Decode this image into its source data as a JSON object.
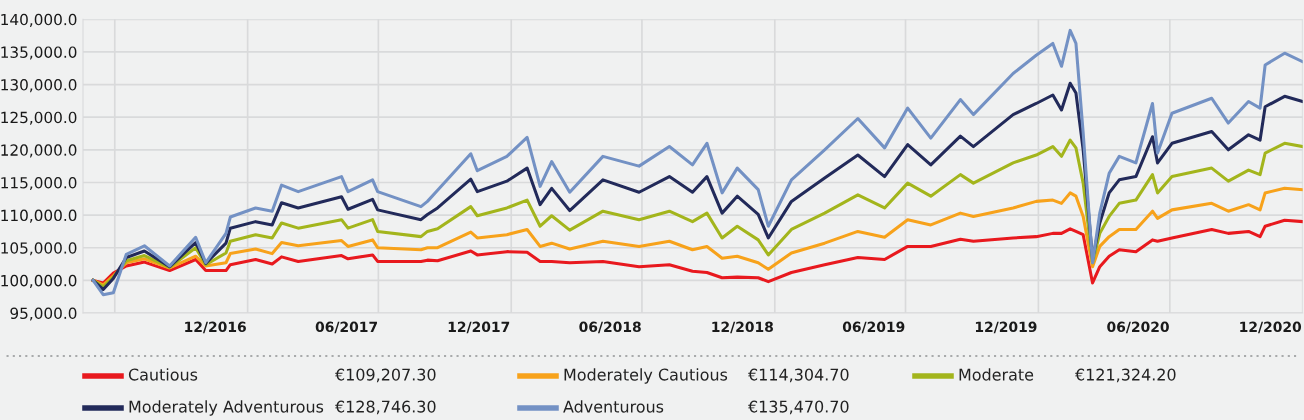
{
  "chart_data": {
    "type": "line",
    "x": [
      "2016-06-15",
      "2016-06-29",
      "2016-07-13",
      "2016-07-31",
      "2016-08-25",
      "2016-09-29",
      "2016-11-04",
      "2016-11-18",
      "2016-12-16",
      "2016-12-22",
      "2017-01-26",
      "2017-02-18",
      "2017-03-03",
      "2017-03-26",
      "2017-05-25",
      "2017-06-03",
      "2017-07-07",
      "2017-07-14",
      "2017-09-12",
      "2017-09-21",
      "2017-10-05",
      "2017-11-20",
      "2017-11-29",
      "2018-01-09",
      "2018-02-06",
      "2018-02-24",
      "2018-03-12",
      "2018-04-06",
      "2018-05-22",
      "2018-07-11",
      "2018-08-22",
      "2018-09-23",
      "2018-10-13",
      "2018-11-03",
      "2018-11-24",
      "2018-12-23",
      "2019-01-06",
      "2019-02-07",
      "2019-03-25",
      "2019-05-10",
      "2019-06-16",
      "2019-07-18",
      "2019-08-19",
      "2019-09-29",
      "2019-10-17",
      "2019-12-11",
      "2020-01-12",
      "2020-02-04",
      "2020-02-16",
      "2020-02-28",
      "2020-03-07",
      "2020-03-17",
      "2020-03-30",
      "2020-04-09",
      "2020-04-22",
      "2020-05-06",
      "2020-05-29",
      "2020-06-21",
      "2020-06-28",
      "2020-07-18",
      "2020-09-11",
      "2020-10-04",
      "2020-11-01",
      "2020-11-17",
      "2020-11-24",
      "2020-12-21",
      "2021-01-15"
    ],
    "series": [
      {
        "name": "Cautious",
        "color": "#e8191e",
        "values": [
          100000,
          99600,
          101100,
          102200,
          102800,
          101500,
          103200,
          101500,
          101500,
          102400,
          103200,
          102500,
          103600,
          102900,
          103800,
          103300,
          103900,
          102900,
          102900,
          103100,
          103000,
          104500,
          103900,
          104400,
          104300,
          102900,
          102900,
          102700,
          102900,
          102100,
          102400,
          101400,
          101200,
          100400,
          100500,
          100400,
          99800,
          101200,
          102400,
          103500,
          103200,
          105200,
          105200,
          106300,
          106000,
          106500,
          106700,
          107200,
          107200,
          107900,
          107500,
          107000,
          99600,
          102100,
          103700,
          104700,
          104400,
          106200,
          106000,
          106500,
          107800,
          107200,
          107500,
          106700,
          108300,
          109200,
          109000
        ]
      },
      {
        "name": "Moderately Cautious",
        "color": "#f7a21b",
        "values": [
          100000,
          99300,
          100700,
          102700,
          103300,
          101900,
          103700,
          102200,
          102700,
          104100,
          104800,
          104100,
          105800,
          105300,
          106100,
          105200,
          106200,
          105000,
          104700,
          105000,
          105000,
          107400,
          106500,
          107000,
          107800,
          105200,
          105700,
          104800,
          106000,
          105200,
          106000,
          104700,
          105200,
          103400,
          103700,
          102700,
          101700,
          104200,
          105700,
          107500,
          106600,
          109300,
          108500,
          110300,
          109800,
          111100,
          112100,
          112300,
          111800,
          113400,
          112900,
          109800,
          102100,
          105200,
          106700,
          107800,
          107800,
          110600,
          109500,
          110800,
          111800,
          110600,
          111600,
          110800,
          113400,
          114100,
          113900
        ]
      },
      {
        "name": "Moderate",
        "color": "#a3b51c",
        "values": [
          100000,
          99000,
          100500,
          103000,
          103800,
          102000,
          105000,
          102400,
          104200,
          106000,
          107000,
          106500,
          108800,
          108000,
          109300,
          108000,
          109300,
          107500,
          106700,
          107500,
          107900,
          111300,
          109900,
          111100,
          112300,
          108300,
          109900,
          107700,
          110600,
          109300,
          110600,
          109000,
          110300,
          106500,
          108300,
          106200,
          103900,
          107800,
          110300,
          113100,
          111100,
          114900,
          112900,
          116200,
          114900,
          118000,
          119200,
          120500,
          119000,
          121500,
          120300,
          114900,
          102700,
          107200,
          109800,
          111800,
          112300,
          116200,
          113400,
          115900,
          117200,
          115200,
          116900,
          116200,
          119500,
          121000,
          120500
        ]
      },
      {
        "name": "Moderately Adventurous",
        "color": "#222a5a",
        "values": [
          100000,
          98600,
          100300,
          103500,
          104500,
          102100,
          105800,
          102600,
          105700,
          108000,
          109000,
          108500,
          111900,
          111100,
          112800,
          110900,
          112400,
          110800,
          109300,
          110100,
          111100,
          115500,
          113600,
          115200,
          117200,
          111600,
          114100,
          110700,
          115400,
          113500,
          115900,
          113500,
          115900,
          110300,
          112900,
          110100,
          106500,
          112100,
          115700,
          119200,
          115900,
          120800,
          117700,
          122100,
          120500,
          125400,
          127100,
          128400,
          126100,
          130200,
          128700,
          120000,
          103200,
          108800,
          113400,
          115400,
          115900,
          122000,
          118000,
          121000,
          122800,
          120000,
          122300,
          121500,
          126600,
          128200,
          127400
        ]
      },
      {
        "name": "Adventurous",
        "color": "#7391c4",
        "values": [
          100000,
          97800,
          98100,
          104000,
          105300,
          102200,
          106600,
          102700,
          107200,
          109700,
          111100,
          110600,
          114600,
          113600,
          115900,
          113600,
          115400,
          113600,
          111300,
          112100,
          113800,
          119400,
          116800,
          119000,
          121900,
          114400,
          118200,
          113500,
          119000,
          117500,
          120500,
          117700,
          121000,
          113400,
          117200,
          113900,
          108300,
          115400,
          120000,
          124800,
          120300,
          126400,
          121800,
          127700,
          125400,
          131700,
          134500,
          136300,
          132800,
          138300,
          136300,
          122600,
          102700,
          110300,
          116400,
          119000,
          118000,
          127100,
          119500,
          125600,
          127900,
          124100,
          127400,
          126400,
          133000,
          134800,
          133500
        ]
      }
    ],
    "annotations": [
      "€109,207.30",
      "€114,304.70",
      "€121,324.20",
      "€128,746.30",
      "€135,470.70"
    ],
    "xlim": [
      "2016-06-01",
      "2021-01-15"
    ],
    "xticks": [
      {
        "value": "2016-07-15",
        "label": null
      },
      {
        "value": "2016-12-01",
        "label": "12/2016"
      },
      {
        "value": "2017-01-15",
        "label": null
      },
      {
        "value": "2017-06-01",
        "label": "06/2017"
      },
      {
        "value": "2017-07-15",
        "label": null
      },
      {
        "value": "2017-12-01",
        "label": "12/2017"
      },
      {
        "value": "2018-01-15",
        "label": null
      },
      {
        "value": "2018-06-01",
        "label": "06/2018"
      },
      {
        "value": "2018-07-15",
        "label": null
      },
      {
        "value": "2018-12-01",
        "label": "12/2018"
      },
      {
        "value": "2019-01-15",
        "label": null
      },
      {
        "value": "2019-06-01",
        "label": "06/2019"
      },
      {
        "value": "2019-07-15",
        "label": null
      },
      {
        "value": "2019-12-01",
        "label": "12/2019"
      },
      {
        "value": "2020-01-15",
        "label": null
      },
      {
        "value": "2020-06-01",
        "label": "06/2020"
      },
      {
        "value": "2020-07-15",
        "label": null
      },
      {
        "value": "2020-12-01",
        "label": "12/2020"
      },
      {
        "value": "2021-01-15",
        "label": null
      }
    ],
    "ylim": [
      95000,
      140000
    ],
    "yticks": [
      {
        "value": 95000,
        "label": "95,000.0"
      },
      {
        "value": 100000,
        "label": "100,000.0"
      },
      {
        "value": 105000,
        "label": "105,000.0"
      },
      {
        "value": 110000,
        "label": "110,000.0"
      },
      {
        "value": 115000,
        "label": "115,000.0"
      },
      {
        "value": 120000,
        "label": "120,000.0"
      },
      {
        "value": 125000,
        "label": "125,000.0"
      },
      {
        "value": 130000,
        "label": "130,000.0"
      },
      {
        "value": 135000,
        "label": "135,000.0"
      },
      {
        "value": 140000,
        "label": "140,000.0"
      }
    ],
    "grid": true,
    "legend": "bottom",
    "marker": "none",
    "line_style": "solid"
  }
}
